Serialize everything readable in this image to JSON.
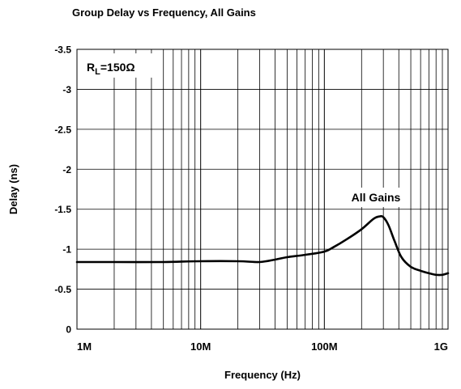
{
  "chart_data": {
    "type": "line",
    "title": "Group Delay vs Frequency, All Gains",
    "xlabel": "Frequency (Hz)",
    "ylabel": "Delay (ns)",
    "x_scale": "log",
    "y_axis_inverted": true,
    "xlim": [
      1000000,
      1000000000
    ],
    "ylim": [
      0,
      -3.5
    ],
    "x_ticks": [
      {
        "value": 1000000,
        "label": "1M"
      },
      {
        "value": 10000000,
        "label": "10M"
      },
      {
        "value": 100000000,
        "label": "100M"
      },
      {
        "value": 1000000000,
        "label": "1G"
      }
    ],
    "y_ticks": [
      {
        "value": 0,
        "label": "0"
      },
      {
        "value": -0.5,
        "label": "-0.5"
      },
      {
        "value": -1,
        "label": "-1"
      },
      {
        "value": -1.5,
        "label": "-1.5"
      },
      {
        "value": -2,
        "label": "-2"
      },
      {
        "value": -2.5,
        "label": "-2.5"
      },
      {
        "value": -3,
        "label": "-3"
      },
      {
        "value": -3.5,
        "label": "-3.5"
      }
    ],
    "grid": true,
    "annotations": {
      "condition_main": "R",
      "condition_sub": "L",
      "condition_value": "=150Ω",
      "series_label": "All Gains"
    },
    "series": [
      {
        "name": "All Gains",
        "x": [
          1000000,
          2000000,
          5000000,
          10000000,
          20000000,
          30000000,
          40000000,
          50000000,
          70000000,
          100000000,
          120000000,
          150000000,
          200000000,
          250000000,
          280000000,
          300000000,
          330000000,
          370000000,
          420000000,
          500000000,
          600000000,
          700000000,
          800000000,
          900000000,
          1000000000
        ],
        "y": [
          -0.84,
          -0.84,
          -0.84,
          -0.85,
          -0.85,
          -0.84,
          -0.87,
          -0.9,
          -0.93,
          -0.97,
          -1.03,
          -1.12,
          -1.25,
          -1.38,
          -1.41,
          -1.4,
          -1.3,
          -1.1,
          -0.9,
          -0.78,
          -0.73,
          -0.7,
          -0.68,
          -0.68,
          -0.7
        ]
      }
    ]
  }
}
